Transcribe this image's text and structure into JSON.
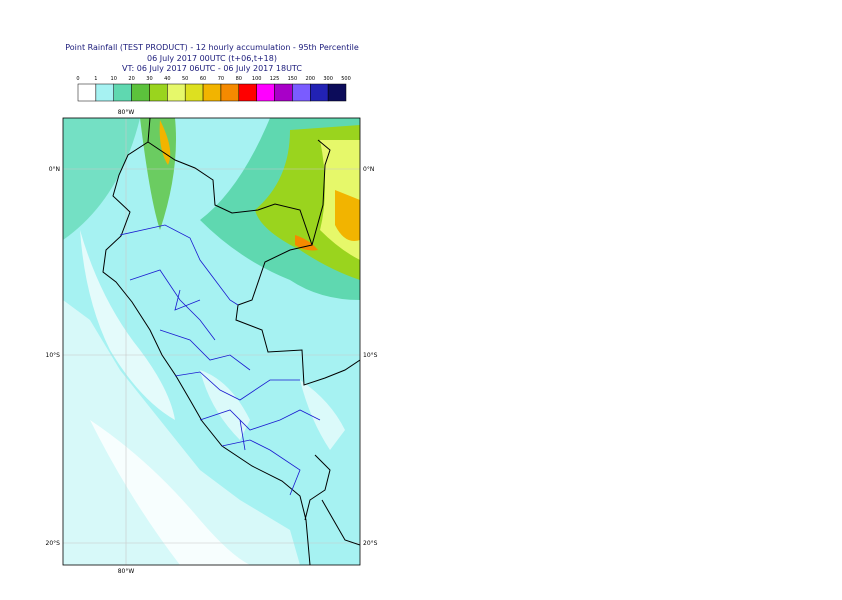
{
  "title": {
    "line1": "Point Rainfall (TEST PRODUCT) - 12 hourly accumulation - 95th Percentile",
    "line2": "06 July 2017 00UTC (t+06,t+18)",
    "line3": "VT: 06 July 2017 06UTC - 06 July 2017 18UTC"
  },
  "legend": {
    "labels": [
      "0",
      "1",
      "10",
      "20",
      "30",
      "40",
      "50",
      "60",
      "70",
      "80",
      "100",
      "125",
      "150",
      "200",
      "300",
      "500"
    ],
    "colors": [
      "#ffffff",
      "#a6f2f2",
      "#5fd8b0",
      "#5cc23c",
      "#9ad41e",
      "#e6f86a",
      "#dde020",
      "#f2b400",
      "#f58a00",
      "#ff0000",
      "#ff00ff",
      "#a800c8",
      "#7a5cff",
      "#2222b4",
      "#0c0c5a"
    ]
  },
  "map": {
    "longitude_labels": [
      "80°W"
    ],
    "latitude_labels": [
      "0°N",
      "10°S",
      "20°S"
    ]
  }
}
